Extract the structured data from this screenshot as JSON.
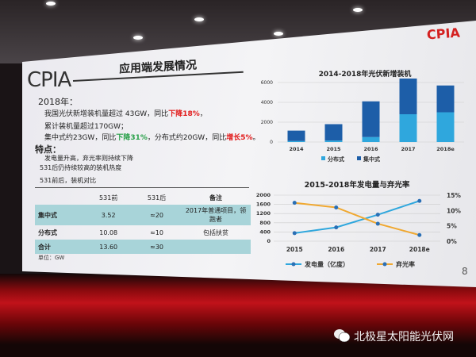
{
  "slide": {
    "logo_text": "CPIA",
    "corner_logo_text": "CPIA",
    "title": "应用端发展情况",
    "year_heading": "2018年：",
    "lines": [
      {
        "pre": "我国光伏新增装机量超过 43GW，同比",
        "hl": "下降18%",
        "hl_color": "red",
        "post": "，"
      },
      {
        "pre": "累计装机量超过170GW；",
        "hl": "",
        "post": ""
      },
      {
        "pre": "集中式约23GW，同比",
        "hl": "下降31%",
        "hl_color": "green",
        "mid": "，分布式约20GW，同比",
        "hl2": "增长5%",
        "post": "。"
      }
    ],
    "features_heading": "特点：",
    "features": [
      "发电量升高，弃光率则持续下降",
      "531后仍持续较高的装机热度"
    ],
    "table_caption": "531前后，装机对比",
    "table": {
      "headers": [
        "",
        "531前",
        "531后",
        "备注"
      ],
      "rows": [
        [
          "集中式",
          "3.52",
          "≈20",
          "2017年普通项目，领跑者"
        ],
        [
          "分布式",
          "10.08",
          "≈10",
          "包括扶贫"
        ],
        [
          "合计",
          "13.60",
          "≈30",
          ""
        ]
      ],
      "unit": "单位：GW"
    },
    "page_number": "8"
  },
  "watermark": "北极星太阳能光伏网",
  "colors": {
    "light_blue": "#2fa7dd",
    "dark_blue": "#1d5ea8",
    "orange": "#f0a830",
    "red": "#e21c1c",
    "green": "#2aa14a",
    "table_highlight": "#a8d4d9"
  },
  "chart_data": [
    {
      "type": "bar",
      "stacked": true,
      "title": "2014-2018年光伏新增装机",
      "categories": [
        "2014",
        "2015",
        "2016",
        "2017",
        "2018e"
      ],
      "series": [
        {
          "name": "分布式",
          "color": "#2fa7dd",
          "values": [
            100,
            150,
            500,
            2800,
            3000
          ]
        },
        {
          "name": "集中式",
          "color": "#1d5ea8",
          "values": [
            1050,
            1650,
            3600,
            3600,
            2700
          ]
        }
      ],
      "yticks": [
        "0",
        "2000",
        "4000",
        "6000"
      ],
      "ylim": [
        0,
        6000
      ],
      "grid": true,
      "legend": "bottom"
    },
    {
      "type": "line",
      "title": "2015-2018年发电量与弃光率",
      "categories": [
        "2015",
        "2016",
        "2017",
        "2018e"
      ],
      "series": [
        {
          "name": "发电量（亿度）",
          "axis": "left",
          "color": "#2fa7dd",
          "values": [
            350,
            600,
            1150,
            1750
          ]
        },
        {
          "name": "弃光率",
          "axis": "right",
          "color": "#f0a830",
          "values": [
            12.5,
            11,
            5.7,
            2
          ]
        }
      ],
      "yticks_left": [
        "0",
        "400",
        "800",
        "1200",
        "1600",
        "2000"
      ],
      "ylim_left": [
        0,
        2000
      ],
      "yticks_right": [
        "0%",
        "5%",
        "10%",
        "15%"
      ],
      "ylim_right": [
        0,
        15
      ],
      "grid": true,
      "legend": "bottom"
    }
  ]
}
